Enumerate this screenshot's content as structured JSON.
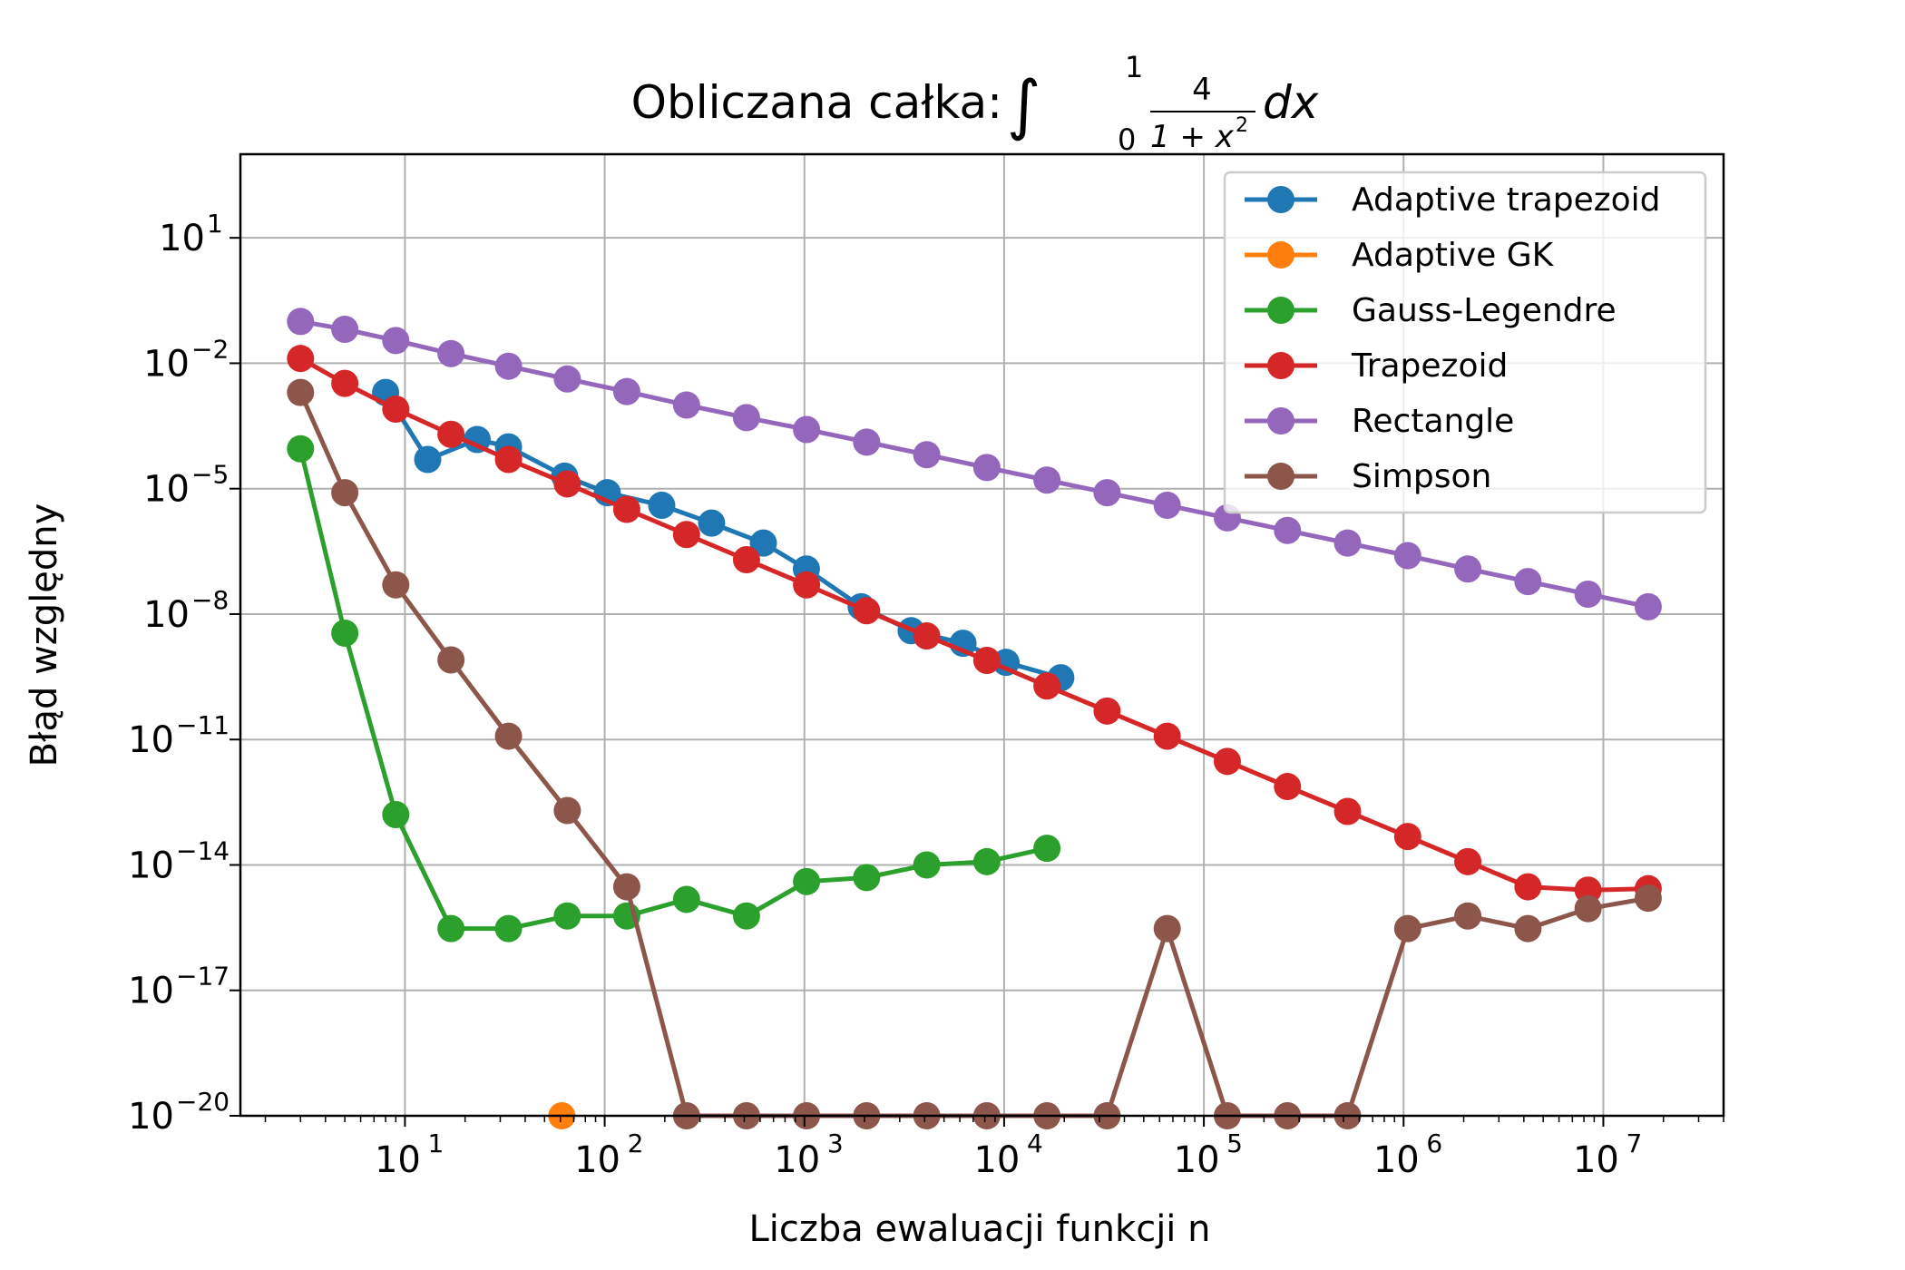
{
  "chart_data": {
    "type": "line",
    "title": "Obliczana całka:",
    "title_formula": {
      "integral_sign": "∫",
      "upper_limit": "1",
      "lower_limit": "0",
      "numerator": "4",
      "denominator_base": "1 + x",
      "denominator_exponent": "2",
      "differential": "dx"
    },
    "xlabel": "Liczba ewaluacji funkcji n",
    "ylabel": "Błąd względny",
    "x_scale": "log",
    "y_scale": "log",
    "xlim": [
      1.5,
      40000000
    ],
    "ylim": [
      1e-20,
      1000
    ],
    "grid": true,
    "legend_position": "top-right",
    "x_ticks": [
      {
        "base": "10",
        "exp": "1",
        "value": 10
      },
      {
        "base": "10",
        "exp": "2",
        "value": 100
      },
      {
        "base": "10",
        "exp": "3",
        "value": 1000
      },
      {
        "base": "10",
        "exp": "4",
        "value": 10000
      },
      {
        "base": "10",
        "exp": "5",
        "value": 100000
      },
      {
        "base": "10",
        "exp": "6",
        "value": 1000000
      },
      {
        "base": "10",
        "exp": "7",
        "value": 10000000
      }
    ],
    "y_ticks": [
      {
        "base": "10",
        "exp": "1",
        "value": 10
      },
      {
        "base": "10",
        "exp": "−2",
        "value": 0.01
      },
      {
        "base": "10",
        "exp": "−5",
        "value": 1e-05
      },
      {
        "base": "10",
        "exp": "−8",
        "value": 1e-08
      },
      {
        "base": "10",
        "exp": "−11",
        "value": 1e-11
      },
      {
        "base": "10",
        "exp": "−14",
        "value": 1e-14
      },
      {
        "base": "10",
        "exp": "−17",
        "value": 1e-17
      },
      {
        "base": "10",
        "exp": "−20",
        "value": 1e-20
      }
    ],
    "series": [
      {
        "name": "Adaptive trapezoid",
        "color": "#1f77b4",
        "x": [
          8,
          13,
          23,
          33,
          63,
          103,
          193,
          343,
          623,
          1023,
          1923,
          3423,
          6223,
          10223,
          19223
        ],
        "y": [
          0.002,
          5e-05,
          0.00015,
          0.0001,
          2e-05,
          8e-06,
          4e-06,
          1.5e-06,
          5e-07,
          1.2e-07,
          1.5e-08,
          4e-09,
          2e-09,
          7e-10,
          3e-10
        ]
      },
      {
        "name": "Adaptive GK",
        "color": "#ff7f0e",
        "x": [
          61
        ],
        "y": [
          1e-20
        ]
      },
      {
        "name": "Gauss-Legendre",
        "color": "#2ca02c",
        "x": [
          3,
          5,
          9,
          17,
          33,
          65,
          129,
          257,
          513,
          1025,
          2049,
          4097,
          8193,
          16385
        ],
        "y": [
          9e-05,
          3.5e-09,
          1.6e-13,
          3e-16,
          3e-16,
          6e-16,
          6e-16,
          1.5e-15,
          6e-16,
          4e-15,
          5e-15,
          1e-14,
          1.2e-14,
          2.5e-14
        ]
      },
      {
        "name": "Trapezoid",
        "color": "#d62728",
        "x": [
          3,
          5,
          9,
          17,
          33,
          65,
          129,
          257,
          513,
          1025,
          2049,
          4097,
          8193,
          16385,
          32769,
          65537,
          131073,
          262145,
          524289,
          1048577,
          2097153,
          4194305,
          8388609,
          16777217
        ],
        "y": [
          0.013,
          0.0033,
          0.0008,
          0.0002,
          5e-05,
          1.3e-05,
          3.2e-06,
          8e-07,
          2e-07,
          5e-08,
          1.2e-08,
          3e-09,
          7.8e-10,
          1.9e-10,
          4.8e-11,
          1.2e-11,
          3e-12,
          7.5e-13,
          1.9e-13,
          4.8e-14,
          1.2e-14,
          3e-15,
          2.5e-15,
          2.7e-15
        ]
      },
      {
        "name": "Rectangle",
        "color": "#9467bd",
        "x": [
          3,
          5,
          9,
          17,
          33,
          65,
          129,
          257,
          513,
          1025,
          2049,
          4097,
          8193,
          16385,
          32769,
          65537,
          131073,
          262145,
          524289,
          1048577,
          2097153,
          4194305,
          8388609,
          16777217
        ],
        "y": [
          0.1,
          0.065,
          0.035,
          0.017,
          0.0085,
          0.0042,
          0.0021,
          0.001,
          0.0005,
          0.00026,
          0.00013,
          6.5e-05,
          3.2e-05,
          1.6e-05,
          8e-06,
          4e-06,
          2e-06,
          1e-06,
          5e-07,
          2.5e-07,
          1.2e-07,
          6e-08,
          3e-08,
          1.5e-08
        ]
      },
      {
        "name": "Simpson",
        "color": "#8c564b",
        "x": [
          3,
          5,
          9,
          17,
          33,
          65,
          129,
          257,
          513,
          1025,
          2049,
          4097,
          8193,
          16385,
          32769,
          65537,
          131073,
          262145,
          524289,
          1048577,
          2097153,
          4194305,
          8388609,
          16777217
        ],
        "y": [
          0.002,
          8e-06,
          5e-08,
          8e-10,
          1.2e-11,
          2e-13,
          3e-15,
          1e-20,
          1e-20,
          1e-20,
          1e-20,
          1e-20,
          1e-20,
          1e-20,
          1e-20,
          3e-16,
          1e-20,
          1e-20,
          1e-20,
          3e-16,
          6e-16,
          3e-16,
          9e-16,
          1.6e-15
        ]
      }
    ]
  }
}
